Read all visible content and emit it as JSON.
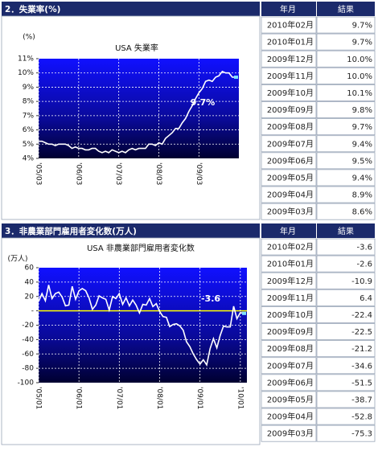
{
  "chart_data": [
    {
      "type": "line",
      "title": "USA 失業率",
      "y_label": "(%)",
      "annotation": "9.7%",
      "categories": [
        "'05/03",
        null,
        null,
        null,
        null,
        null,
        null,
        null,
        null,
        null,
        null,
        null,
        "'06/03",
        null,
        null,
        null,
        null,
        null,
        null,
        null,
        null,
        null,
        null,
        null,
        "'07/03",
        null,
        null,
        null,
        null,
        null,
        null,
        null,
        null,
        null,
        null,
        null,
        "'08/03",
        null,
        null,
        null,
        null,
        null,
        null,
        null,
        null,
        null,
        null,
        null,
        "'09/03",
        null,
        null,
        null,
        null,
        null,
        null,
        null,
        null,
        null,
        null,
        null
      ],
      "series": [
        {
          "color": "#ffffff",
          "values": [
            5.2,
            5.2,
            5.1,
            5.0,
            5.0,
            4.9,
            5.0,
            5.0,
            5.0,
            4.9,
            4.7,
            4.8,
            4.7,
            4.7,
            4.6,
            4.6,
            4.7,
            4.7,
            4.5,
            4.4,
            4.5,
            4.4,
            4.6,
            4.5,
            4.4,
            4.5,
            4.4,
            4.6,
            4.7,
            4.6,
            4.7,
            4.7,
            4.7,
            5.0,
            5.0,
            4.9,
            5.1,
            5.0,
            5.4,
            5.6,
            5.8,
            6.1,
            6.1,
            6.5,
            6.8,
            7.3,
            7.7,
            8.2,
            8.6,
            8.9,
            9.4,
            9.5,
            9.4,
            9.7,
            9.8,
            10.1,
            10.0,
            10.0,
            9.7,
            9.7
          ]
        }
      ],
      "ylim": [
        4,
        11
      ],
      "yticks": [
        {
          "value": 4,
          "label": "4%"
        },
        {
          "value": 5,
          "label": "5%"
        },
        {
          "value": 6,
          "label": "6%"
        },
        {
          "value": 7,
          "label": "7%"
        },
        {
          "value": 8,
          "label": "8%"
        },
        {
          "value": 9,
          "label": "9%"
        },
        {
          "value": 10,
          "label": "10%"
        },
        {
          "value": 11,
          "label": "11%"
        }
      ],
      "grid": true
    },
    {
      "type": "line",
      "title": "USA 非農業部門雇用者変化数",
      "y_label": "(万人)",
      "annotation": "-3.6",
      "categories": [
        "'05/01",
        null,
        null,
        null,
        null,
        null,
        null,
        null,
        null,
        null,
        null,
        null,
        "'06/01",
        null,
        null,
        null,
        null,
        null,
        null,
        null,
        null,
        null,
        null,
        null,
        "'07/01",
        null,
        null,
        null,
        null,
        null,
        null,
        null,
        null,
        null,
        null,
        null,
        "'08/01",
        null,
        null,
        null,
        null,
        null,
        null,
        null,
        null,
        null,
        null,
        null,
        "'09/01",
        null,
        null,
        null,
        null,
        null,
        null,
        null,
        null,
        null,
        null,
        null,
        "'10/01",
        null
      ],
      "series": [
        {
          "color": "#ffffff",
          "values": [
            13,
            24,
            14,
            36,
            17,
            24,
            26,
            19,
            7,
            8,
            34,
            16,
            28,
            31,
            28,
            18,
            2,
            8,
            21,
            18,
            16,
            1,
            20,
            17,
            24,
            9,
            18,
            7,
            15,
            8,
            -3,
            9,
            8,
            17,
            6,
            10,
            -1,
            -8,
            -9,
            -22,
            -19,
            -18,
            -21,
            -27,
            -43,
            -50,
            -60,
            -68,
            -74.1,
            -68.1,
            -75.3,
            -52.8,
            -38.7,
            -51.5,
            -34.6,
            -21.2,
            -22.5,
            -22.4,
            6.4,
            -10.9,
            -2.6,
            -3.6
          ]
        }
      ],
      "ylim": [
        -100,
        60
      ],
      "yticks": [
        -100,
        -80,
        -60,
        -40,
        -20,
        {
          "value": 0,
          "label": "-"
        },
        20,
        40,
        60
      ],
      "zero_line_color": "#ffff00",
      "grid": true
    }
  ],
  "tables": [
    {
      "title": "2．失業率(%)",
      "header": [
        "年月",
        "結果"
      ],
      "rows": [
        [
          "2010年02月",
          "9.7%"
        ],
        [
          "2010年01月",
          "9.7%"
        ],
        [
          "2009年12月",
          "10.0%"
        ],
        [
          "2009年11月",
          "10.0%"
        ],
        [
          "2009年10月",
          "10.1%"
        ],
        [
          "2009年09月",
          "9.8%"
        ],
        [
          "2009年08月",
          "9.7%"
        ],
        [
          "2009年07月",
          "9.4%"
        ],
        [
          "2009年06月",
          "9.5%"
        ],
        [
          "2009年05月",
          "9.4%"
        ],
        [
          "2009年04月",
          "8.9%"
        ],
        [
          "2009年03月",
          "8.6%"
        ]
      ]
    },
    {
      "title": "3．非農業部門雇用者変化数(万人)",
      "header": [
        "年月",
        "結果"
      ],
      "rows": [
        [
          "2010年02月",
          "-3.6"
        ],
        [
          "2010年01月",
          "-2.6"
        ],
        [
          "2009年12月",
          "-10.9"
        ],
        [
          "2009年11月",
          "6.4"
        ],
        [
          "2009年10月",
          "-22.4"
        ],
        [
          "2009年09月",
          "-22.5"
        ],
        [
          "2009年08月",
          "-21.2"
        ],
        [
          "2009年07月",
          "-34.6"
        ],
        [
          "2009年06月",
          "-51.5"
        ],
        [
          "2009年05月",
          "-38.7"
        ],
        [
          "2009年04月",
          "-52.8"
        ],
        [
          "2009年03月",
          "-75.3"
        ]
      ]
    }
  ]
}
